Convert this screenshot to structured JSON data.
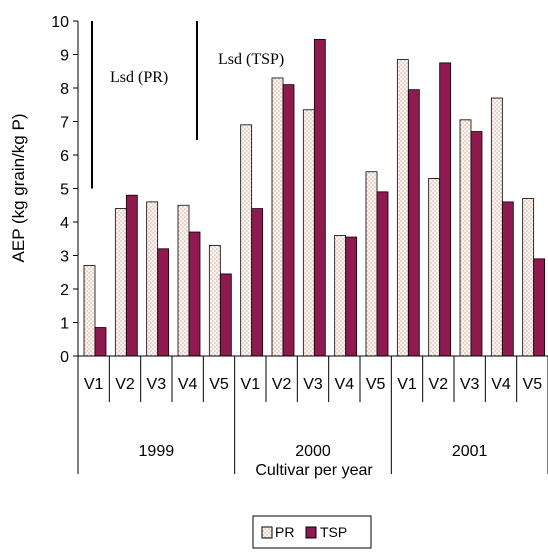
{
  "chart_data": {
    "type": "bar",
    "ylabel": "AEP (kg grain/kg P)",
    "xlabel": "Cultivar per year",
    "ylim": [
      0,
      10
    ],
    "yticks": [
      "0",
      "1",
      "2",
      "3",
      "4",
      "5",
      "6",
      "7",
      "8",
      "9",
      "10"
    ],
    "grid": false,
    "legend_position": "bottom",
    "groups": [
      {
        "label": "1999",
        "categories": [
          "V1",
          "V2",
          "V3",
          "V4",
          "V5"
        ]
      },
      {
        "label": "2000",
        "categories": [
          "V1",
          "V2",
          "V3",
          "V4",
          "V5"
        ]
      },
      {
        "label": "2001",
        "categories": [
          "V1",
          "V2",
          "V3",
          "V4",
          "V5"
        ]
      }
    ],
    "series": [
      {
        "name": "PR",
        "pattern": "dotted",
        "color": "#fdf3ee",
        "values": [
          2.7,
          4.4,
          4.6,
          4.5,
          3.3,
          6.9,
          8.3,
          7.35,
          3.6,
          5.5,
          8.85,
          5.3,
          7.05,
          7.7,
          4.7
        ]
      },
      {
        "name": "TSP",
        "color": "#8e1a4f",
        "values": [
          0.85,
          4.8,
          3.2,
          3.7,
          2.45,
          4.4,
          8.1,
          9.45,
          3.55,
          4.9,
          7.95,
          8.75,
          6.7,
          4.6,
          2.9
        ]
      }
    ],
    "annotations": [
      {
        "text": "Lsd (PR)",
        "from": 5.0,
        "to": 10.0
      },
      {
        "text": "Lsd (TSP)",
        "from": 6.45,
        "to": 10.0
      }
    ]
  }
}
